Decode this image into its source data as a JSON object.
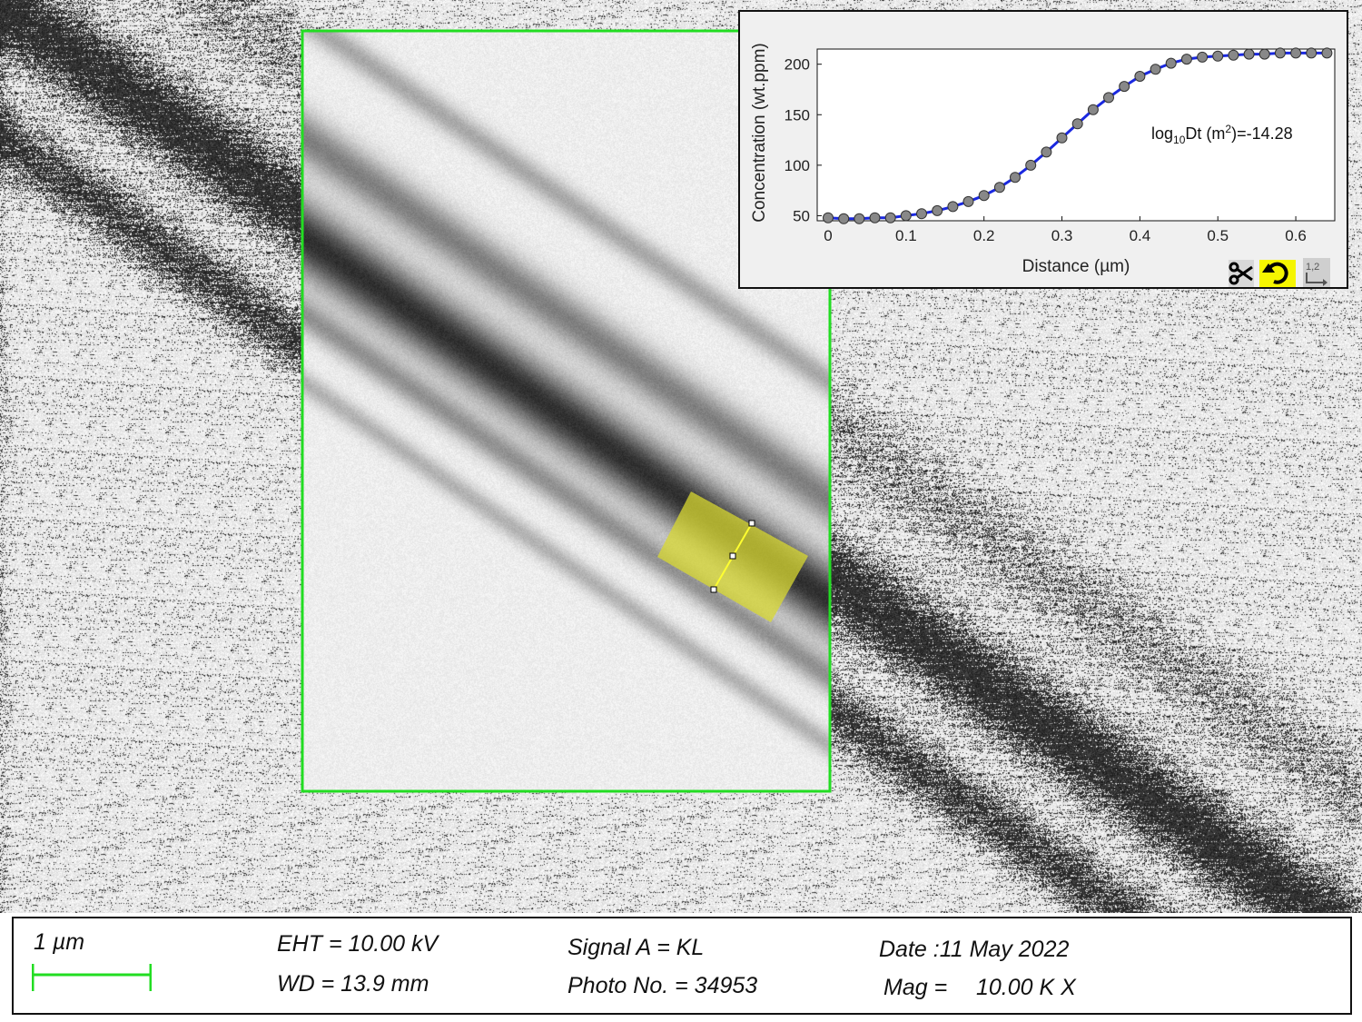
{
  "colors": {
    "roi_border": "#22dd22",
    "roi_fill": "#d8d832",
    "fit_line": "#1a28e0",
    "data_marker": "#888888",
    "scale_bar": "#22dd22",
    "panel_bg": "#f0f0f0",
    "rotate_highlight": "#f5f500"
  },
  "chart_data": {
    "type": "scatter",
    "title": "",
    "xlabel": "Distance (µm)",
    "ylabel": "Concentration (wt.ppm)",
    "xlim": [
      0,
      0.65
    ],
    "ylim": [
      45,
      215
    ],
    "xticks": [
      "0",
      "0.1",
      "0.2",
      "0.3",
      "0.4",
      "0.5",
      "0.6"
    ],
    "yticks": [
      "50",
      "100",
      "150",
      "200"
    ],
    "grid": false,
    "legend": "none",
    "annotation": {
      "prefix": "log",
      "sub": "10",
      "middle": "Dt (m",
      "sup": "2",
      "suffix": ")=-14.28"
    },
    "series": [
      {
        "kind": "measured points",
        "x": [
          0.0,
          0.02,
          0.04,
          0.06,
          0.08,
          0.1,
          0.12,
          0.14,
          0.16,
          0.18,
          0.2,
          0.22,
          0.24,
          0.26,
          0.28,
          0.3,
          0.32,
          0.34,
          0.36,
          0.38,
          0.4,
          0.42,
          0.44,
          0.46,
          0.48,
          0.5,
          0.52,
          0.54,
          0.56,
          0.58,
          0.6,
          0.62,
          0.64
        ],
        "y": [
          48,
          47,
          47,
          48,
          48,
          50,
          52,
          55,
          59,
          64,
          70,
          78,
          88,
          100,
          113,
          127,
          141,
          155,
          167,
          178,
          188,
          195,
          201,
          205,
          207,
          208,
          209,
          210,
          210,
          211,
          211,
          211,
          211
        ]
      },
      {
        "kind": "diffusion fit",
        "x": [
          0.0,
          0.02,
          0.04,
          0.06,
          0.08,
          0.1,
          0.12,
          0.14,
          0.16,
          0.18,
          0.2,
          0.22,
          0.24,
          0.26,
          0.28,
          0.3,
          0.32,
          0.34,
          0.36,
          0.38,
          0.4,
          0.42,
          0.44,
          0.46,
          0.48,
          0.5,
          0.52,
          0.54,
          0.56,
          0.58,
          0.6,
          0.62,
          0.64
        ],
        "y": [
          48,
          47,
          47,
          48,
          48,
          50,
          52,
          55,
          59,
          64,
          70,
          78,
          88,
          100,
          113,
          127,
          141,
          155,
          167,
          178,
          188,
          195,
          201,
          205,
          207,
          208,
          209,
          210,
          210,
          211,
          211,
          211,
          211
        ]
      }
    ]
  },
  "toolbar": {
    "scissors": "scissors-icon",
    "rotate": "rotate-icon",
    "datatips": "datatips-icon",
    "datatips_label": "1,2"
  },
  "footer": {
    "scale_label": "1 µm",
    "eht": "EHT = 10.00 kV",
    "wd": "WD = 13.9 mm",
    "signal": "Signal A = KL",
    "photo": "Photo No. = 34953",
    "date": "Date :11 May 2022",
    "mag_label": "Mag =",
    "mag_value": "10.00 K X"
  }
}
